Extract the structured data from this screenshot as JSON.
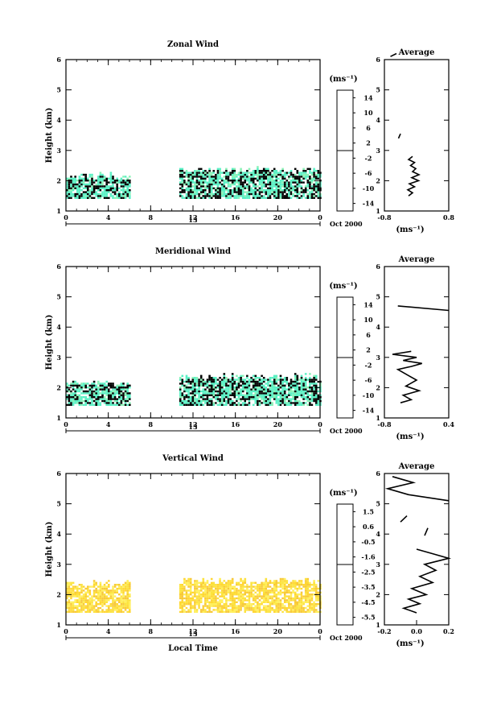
{
  "figure": {
    "xlabel": "Local Time",
    "date_label": "13",
    "month_label": "Oct 2000",
    "avg_title": "Average",
    "height_label": "Height (km)",
    "unit_label": "(ms⁻¹)"
  },
  "chart_data": [
    {
      "type": "heatmap",
      "title": "Zonal Wind",
      "ylabel": "Height (km)",
      "xlabel": "",
      "xlim": [
        0,
        24
      ],
      "ylim": [
        1,
        6
      ],
      "x_ticks": [
        "0",
        "4",
        "8",
        "12",
        "16",
        "20",
        "0"
      ],
      "y_ticks": [
        "1",
        "2",
        "3",
        "4",
        "5",
        "6"
      ],
      "data_coverage": [
        {
          "x": [
            0,
            6
          ],
          "y": [
            1.4,
            2.3
          ]
        },
        {
          "x": [
            10.7,
            24
          ],
          "y": [
            1.4,
            2.5
          ]
        }
      ],
      "colorbar": {
        "unit": "(ms⁻¹)",
        "ticks": [
          "14",
          "10",
          "6",
          "2",
          "-2",
          "-6",
          "-10",
          "-14"
        ],
        "range": [
          -16,
          16
        ]
      },
      "average_profile": {
        "title": "Average",
        "xlabel": "(ms⁻¹)",
        "xlim": [
          -0.8,
          0.8
        ],
        "x_ticks": [
          "-0.8",
          "0.8"
        ],
        "y_ticks": [
          "1",
          "2",
          "3",
          "4",
          "5",
          "6"
        ],
        "segments": [
          [
            [
              -0.2,
              1.5
            ],
            [
              -0.1,
              1.6
            ],
            [
              -0.22,
              1.7
            ],
            [
              -0.05,
              1.8
            ],
            [
              -0.18,
              1.9
            ],
            [
              0.05,
              2.0
            ],
            [
              -0.12,
              2.1
            ],
            [
              0.06,
              2.2
            ],
            [
              -0.1,
              2.3
            ],
            [
              -0.02,
              2.4
            ],
            [
              -0.15,
              2.5
            ],
            [
              -0.05,
              2.6
            ],
            [
              -0.2,
              2.7
            ],
            [
              -0.1,
              2.8
            ]
          ],
          [
            [
              -0.45,
              3.4
            ],
            [
              -0.4,
              3.55
            ]
          ],
          [
            [
              -0.65,
              6.1
            ],
            [
              -0.5,
              6.2
            ]
          ]
        ]
      }
    },
    {
      "type": "heatmap",
      "title": "Meridional Wind",
      "ylabel": "Height (km)",
      "xlabel": "",
      "xlim": [
        0,
        24
      ],
      "ylim": [
        1,
        6
      ],
      "x_ticks": [
        "0",
        "4",
        "8",
        "12",
        "16",
        "20",
        "0"
      ],
      "y_ticks": [
        "1",
        "2",
        "3",
        "4",
        "5",
        "6"
      ],
      "data_coverage": [
        {
          "x": [
            0,
            6
          ],
          "y": [
            1.4,
            2.3
          ]
        },
        {
          "x": [
            10.7,
            24
          ],
          "y": [
            1.4,
            2.5
          ]
        }
      ],
      "colorbar": {
        "unit": "(ms⁻¹)",
        "ticks": [
          "14",
          "10",
          "6",
          "2",
          "-2",
          "-6",
          "-10",
          "-14"
        ],
        "range": [
          -16,
          16
        ]
      },
      "average_profile": {
        "title": "Average",
        "xlabel": "(ms⁻¹)",
        "xlim": [
          -0.8,
          0.4
        ],
        "x_ticks": [
          "-0.8",
          "0.4"
        ],
        "y_ticks": [
          "1",
          "2",
          "3",
          "4",
          "5",
          "6"
        ],
        "segments": [
          [
            [
              -0.5,
              1.5
            ],
            [
              -0.3,
              1.6
            ],
            [
              -0.45,
              1.75
            ],
            [
              -0.15,
              1.9
            ],
            [
              -0.4,
              2.05
            ],
            [
              -0.2,
              2.25
            ],
            [
              -0.35,
              2.4
            ],
            [
              -0.55,
              2.6
            ],
            [
              -0.3,
              2.7
            ],
            [
              -0.1,
              2.8
            ],
            [
              -0.45,
              2.9
            ],
            [
              -0.2,
              3.0
            ],
            [
              -0.65,
              3.1
            ],
            [
              -0.3,
              3.2
            ]
          ],
          [
            [
              -0.55,
              4.7
            ],
            [
              0.4,
              4.55
            ]
          ]
        ]
      }
    },
    {
      "type": "heatmap",
      "title": "Vertical Wind",
      "ylabel": "Height (km)",
      "xlabel": "Local Time",
      "xlim": [
        0,
        24
      ],
      "ylim": [
        1,
        6
      ],
      "x_ticks": [
        "0",
        "4",
        "8",
        "12",
        "16",
        "20",
        "0"
      ],
      "y_ticks": [
        "1",
        "2",
        "3",
        "4",
        "5",
        "6"
      ],
      "data_coverage": [
        {
          "x": [
            0,
            6
          ],
          "y": [
            1.4,
            2.5
          ]
        },
        {
          "x": [
            10.7,
            24
          ],
          "y": [
            1.4,
            2.6
          ]
        }
      ],
      "colorbar": {
        "unit": "(ms⁻¹)",
        "ticks": [
          "1.5",
          "0.6",
          "-0.5",
          "-1.6",
          "-2.5",
          "-3.5",
          "-4.5",
          "-5.5"
        ],
        "range": [
          -6,
          2
        ]
      },
      "average_profile": {
        "title": "Average",
        "xlabel": "(ms⁻¹)",
        "xlim": [
          -0.2,
          0.2
        ],
        "x_ticks": [
          "-0.2",
          "0.0",
          "0.2"
        ],
        "y_ticks": [
          "1",
          "2",
          "3",
          "4",
          "5",
          "6"
        ],
        "segments": [
          [
            [
              0.0,
              1.4
            ],
            [
              -0.08,
              1.55
            ],
            [
              0.02,
              1.7
            ],
            [
              -0.05,
              1.85
            ],
            [
              0.06,
              2.0
            ],
            [
              -0.03,
              2.2
            ],
            [
              0.1,
              2.4
            ],
            [
              0.02,
              2.6
            ],
            [
              0.12,
              2.8
            ],
            [
              0.05,
              3.0
            ],
            [
              0.2,
              3.2
            ],
            [
              0.1,
              3.35
            ],
            [
              0.0,
              3.5
            ]
          ],
          [
            [
              0.05,
              3.95
            ],
            [
              0.07,
              4.2
            ]
          ],
          [
            [
              -0.1,
              4.4
            ],
            [
              -0.06,
              4.6
            ]
          ],
          [
            [
              0.2,
              5.1
            ],
            [
              -0.05,
              5.3
            ],
            [
              -0.18,
              5.5
            ],
            [
              -0.02,
              5.7
            ],
            [
              -0.15,
              5.9
            ]
          ]
        ]
      }
    }
  ]
}
